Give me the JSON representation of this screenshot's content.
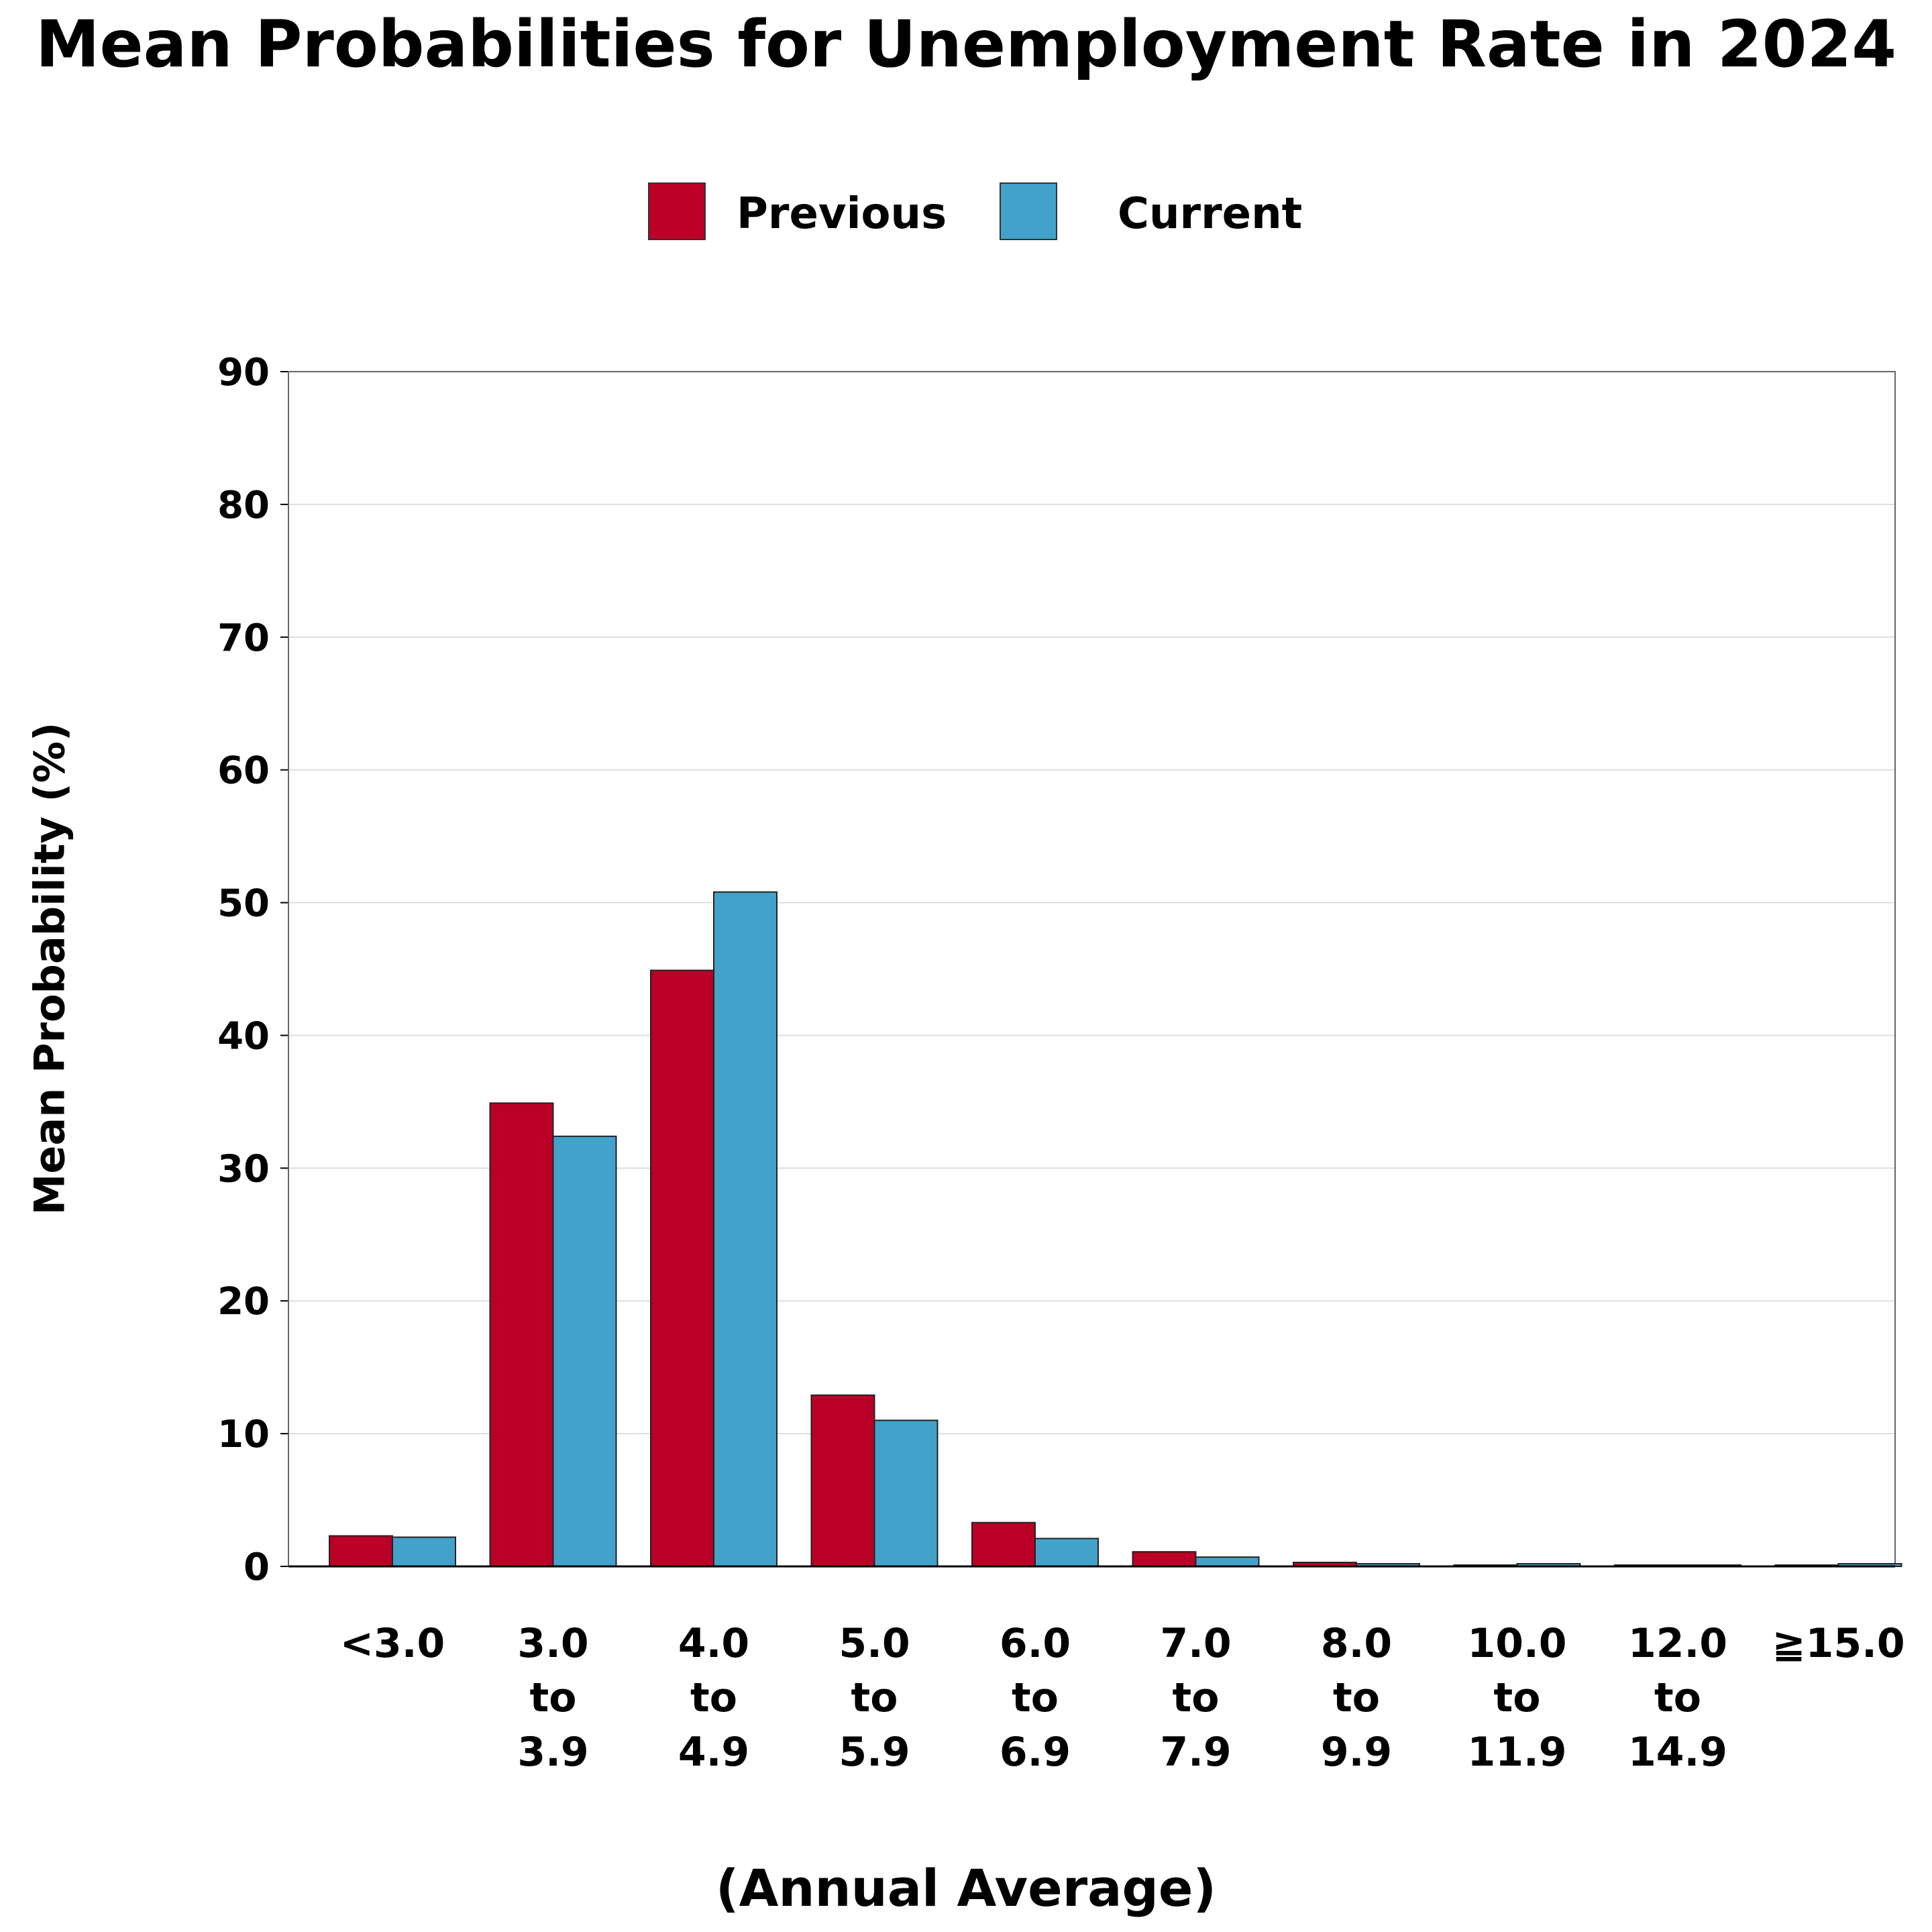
{
  "chart_data": {
    "type": "bar",
    "title": "Mean Probabilities for Unemployment Rate in 2024",
    "xlabel": "(Annual Average)",
    "ylabel": "Mean Probability (%)",
    "ylim": [
      0,
      90
    ],
    "yticks": [
      "0",
      "10",
      "20",
      "30",
      "40",
      "50",
      "60",
      "70",
      "80",
      "90"
    ],
    "grid": true,
    "legend_position": "top",
    "categories": [
      [
        "<3.0"
      ],
      [
        "3.0",
        "to",
        "3.9"
      ],
      [
        "4.0",
        "to",
        "4.9"
      ],
      [
        "5.0",
        "to",
        "5.9"
      ],
      [
        "6.0",
        "to",
        "6.9"
      ],
      [
        "7.0",
        "to",
        "7.9"
      ],
      [
        "8.0",
        "to",
        "9.9"
      ],
      [
        "10.0",
        "to",
        "11.9"
      ],
      [
        "12.0",
        "to",
        "14.9"
      ],
      [
        "≧15.0"
      ]
    ],
    "series": [
      {
        "name": "Previous",
        "color": "#BA0026",
        "values": [
          2.3,
          34.9,
          44.9,
          12.9,
          3.3,
          1.1,
          0.3,
          0.1,
          0.1,
          0.1
        ]
      },
      {
        "name": "Current",
        "color": "#43A2CA",
        "values": [
          2.2,
          32.4,
          50.8,
          11.0,
          2.1,
          0.7,
          0.2,
          0.2,
          0.1,
          0.2
        ]
      }
    ]
  }
}
